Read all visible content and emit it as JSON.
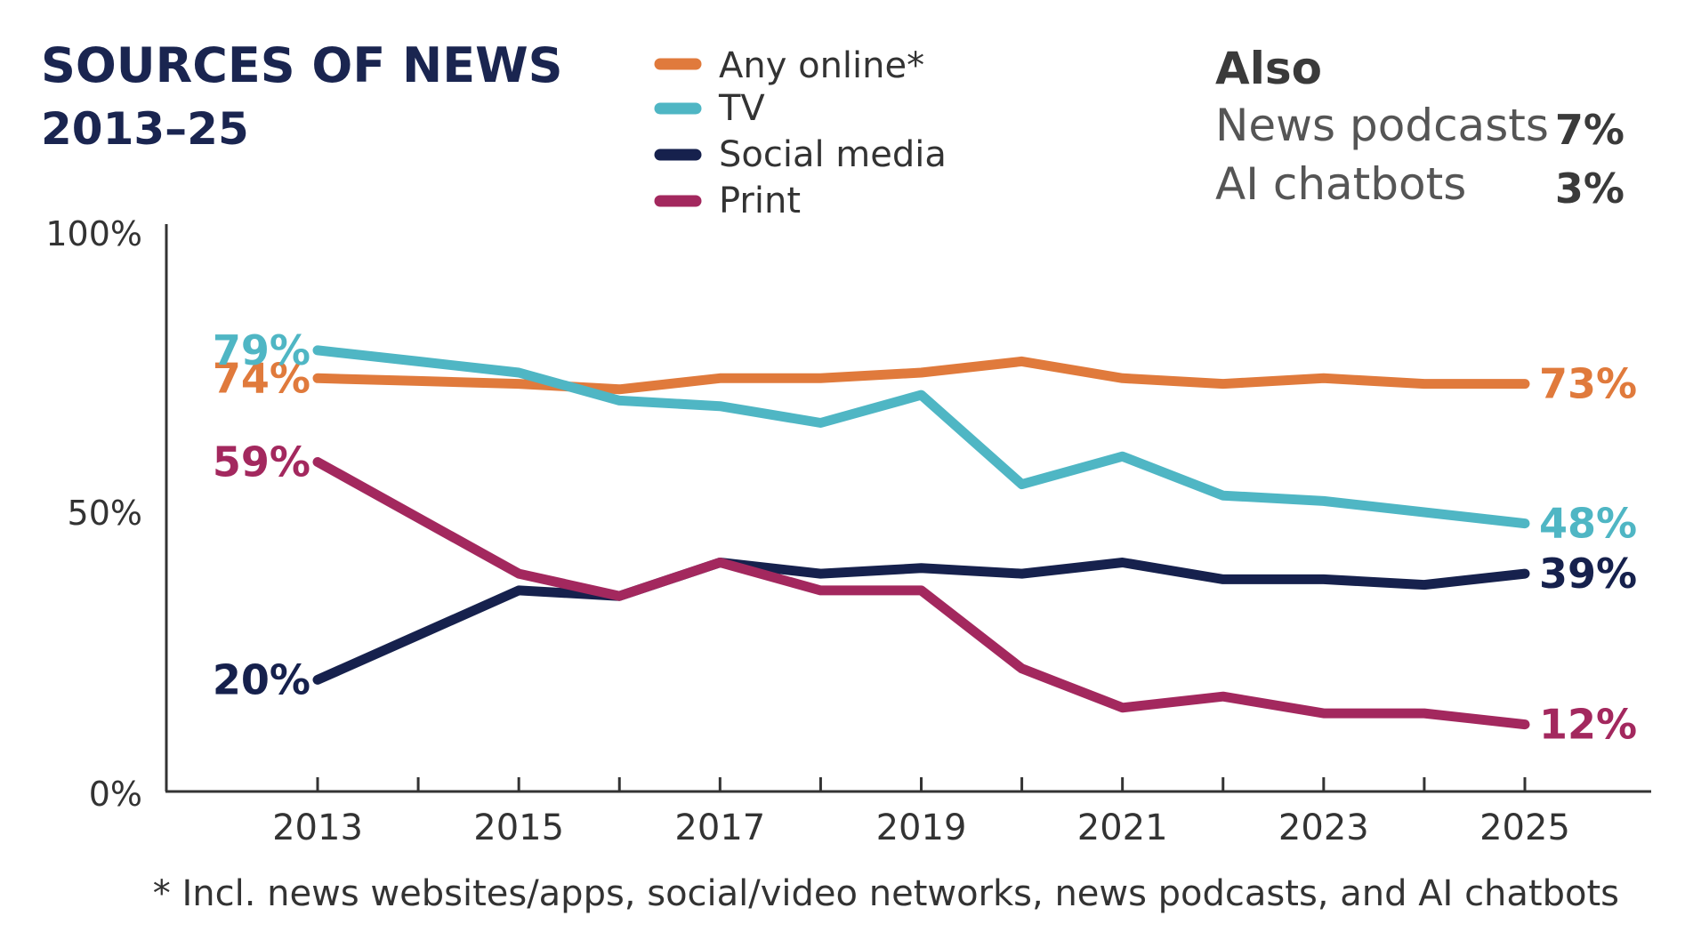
{
  "title": "SOURCES OF NEWS",
  "subtitle": "2013–25",
  "legend": [
    {
      "label": "Any online*",
      "color": "#e07a3c"
    },
    {
      "label": "TV",
      "color": "#4fb6c4"
    },
    {
      "label": "Social media",
      "color": "#16214d"
    },
    {
      "label": "Print",
      "color": "#a3285e"
    }
  ],
  "also": {
    "heading": "Also",
    "items": [
      {
        "label": "News podcasts",
        "value": "7%"
      },
      {
        "label": "AI chatbots",
        "value": "3%"
      }
    ]
  },
  "footnote": "* Incl. news websites/apps, social/video networks, news podcasts, and AI chatbots",
  "chart_data": {
    "type": "line",
    "x": [
      2013,
      2014,
      2015,
      2016,
      2017,
      2018,
      2019,
      2020,
      2021,
      2022,
      2023,
      2024,
      2025
    ],
    "x_tick_labels": [
      "2013",
      "2015",
      "2017",
      "2019",
      "2021",
      "2023",
      "2025"
    ],
    "y_tick_labels": [
      "100%",
      "50%",
      "0%"
    ],
    "ylim": [
      0,
      100
    ],
    "series": [
      {
        "name": "Any online*",
        "color": "#e07a3c",
        "values": [
          74,
          73.5,
          73,
          72,
          74,
          74,
          75,
          77,
          74,
          73,
          74,
          73,
          73
        ],
        "start_label": "74%",
        "end_label": "73%"
      },
      {
        "name": "TV",
        "color": "#4fb6c4",
        "values": [
          79,
          77,
          75,
          70,
          69,
          66,
          71,
          55,
          60,
          53,
          52,
          50,
          48
        ],
        "start_label": "79%",
        "end_label": "48%"
      },
      {
        "name": "Social media",
        "color": "#16214d",
        "values": [
          20,
          28,
          36,
          35,
          41,
          39,
          40,
          39,
          41,
          38,
          38,
          37,
          39
        ],
        "start_label": "20%",
        "end_label": "39%"
      },
      {
        "name": "Print",
        "color": "#a3285e",
        "values": [
          59,
          49,
          39,
          35,
          41,
          36,
          36,
          22,
          15,
          17,
          14,
          14,
          12
        ],
        "start_label": "59%",
        "end_label": "12%"
      }
    ]
  }
}
